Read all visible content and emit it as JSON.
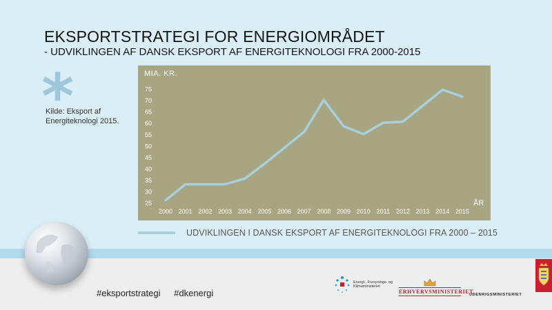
{
  "header": {
    "title": "EKSPORTSTRATEGI FOR ENERGIOMRÅDET",
    "subtitle": "- UDVIKLINGEN AF DANSK EKSPORT AF ENERGITEKNOLOGI FRA 2000-2015"
  },
  "source_note": "Kilde: Eksport af Energiteknologi 2015.",
  "chart_data": {
    "type": "line",
    "ylabel": "MIA. KR.",
    "xlabel": "ÅR",
    "ylim": [
      25,
      77
    ],
    "yticks": [
      25,
      30,
      35,
      40,
      45,
      50,
      55,
      60,
      65,
      70,
      75
    ],
    "x": [
      "2000",
      "2001",
      "2002",
      "2003",
      "2004",
      "2005",
      "2006",
      "2007",
      "2008",
      "2009",
      "2010",
      "2011",
      "2012",
      "2013",
      "2014",
      "2015"
    ],
    "series": [
      {
        "name": "UDVIKLINGEN I DANSK EKSPORT AF ENERGITEKNOLOGI FRA 2000 – 2015",
        "values": [
          26,
          33,
          33,
          33,
          35.5,
          42,
          49,
          56,
          70,
          58.5,
          55,
          60,
          60.5,
          67.5,
          74.5,
          71.5
        ],
        "color": "#a8cfdc"
      }
    ],
    "background": "#a8a582",
    "grid": false,
    "legend": "bottom"
  },
  "footer": {
    "hashtags": [
      "#eksportstrategi",
      "#dkenergi"
    ],
    "logos": {
      "energi": "Energi-, Forsynings- og Klimaministeriet",
      "erhverv": "ERHVERVSMINISTERIET",
      "udenrigs": "UDENRIGSMINISTERIET"
    }
  },
  "icons": [
    "asterisk-icon",
    "globe-icon",
    "crown-icon",
    "crest-icon"
  ]
}
